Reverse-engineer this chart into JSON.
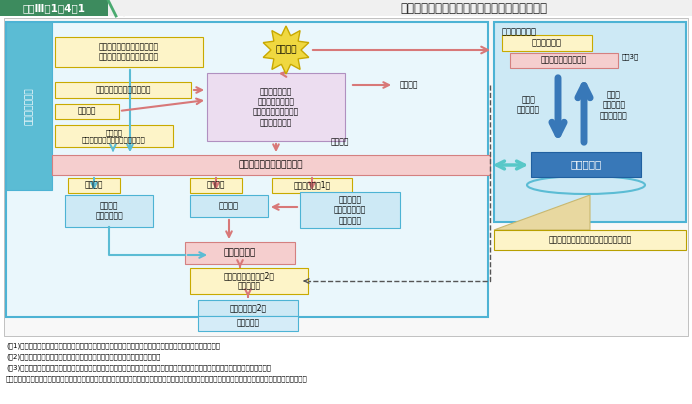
{
  "title": "図表Ⅲ－1－4－1",
  "subtitle": "要請から派遣、撤収までの流れ及び政府の対応",
  "bg": "#ffffff",
  "hdr_green": "#3a8a5a",
  "hdr_title_bg": "#3a7a55",
  "light_blue_area": "#cde9f5",
  "light_blue_border": "#4db3d4",
  "yellow_fill": "#fdf4c8",
  "yellow_border": "#c8aa00",
  "pink_fill": "#f5cece",
  "pink_border": "#d48080",
  "purple_fill": "#ecddf0",
  "purple_border": "#b090c0",
  "blue_box_fill": "#3878b8",
  "pink_arrow": "#d87878",
  "blue_arrow": "#5bbcd4",
  "gray_dash": "#555555",
  "teal_arrow": "#58c8c8",
  "note1": "(注1)　即応予備自衛官及び予備自衛官の招集は、防衛大臣が、必要に応じて内閣総理大臣の承認を得て行う。",
  "note2": "(注2)　防衛大臣が即応予備自衛官、予備自衛官の招集を解除することをいう。",
  "note3": "(注3)　自然災害、原子力災害、事故災害などの緊急事態の発生に際しては、各省庁の局長級の要員からなる緊急参集チームが参集する。",
  "note4": "さらに、激甚な災害が発生した場合は、総理等の判断により関係閉鎖会議が開催され、状況に応じて、政府対策本部の設置や国家安全保障会議が開催される。"
}
